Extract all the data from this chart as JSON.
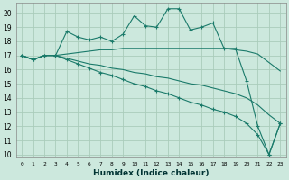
{
  "xlabel": "Humidex (Indice chaleur)",
  "ylabel": "",
  "bg_color": "#cce8dd",
  "grid_color": "#aaccbb",
  "line_color": "#1a7a6a",
  "xlim": [
    -0.5,
    23.5
  ],
  "ylim": [
    9.8,
    20.7
  ],
  "yticks": [
    10,
    11,
    12,
    13,
    14,
    15,
    16,
    17,
    18,
    19,
    20
  ],
  "xticks": [
    0,
    1,
    2,
    3,
    4,
    5,
    6,
    7,
    8,
    9,
    10,
    11,
    12,
    13,
    14,
    15,
    16,
    17,
    18,
    19,
    20,
    21,
    22,
    23
  ],
  "series": [
    {
      "x": [
        0,
        1,
        2,
        3,
        4,
        5,
        6,
        7,
        8,
        9,
        10,
        11,
        12,
        13,
        14,
        15,
        16,
        17,
        18,
        19,
        20,
        21,
        22,
        23
      ],
      "y": [
        17.0,
        16.7,
        17.0,
        17.0,
        18.7,
        18.3,
        18.1,
        18.3,
        18.0,
        18.5,
        19.8,
        19.1,
        19.0,
        20.3,
        20.3,
        18.8,
        19.0,
        19.3,
        17.5,
        17.5,
        15.2,
        12.0,
        10.0,
        12.2
      ],
      "marker": "+"
    },
    {
      "x": [
        0,
        1,
        2,
        3,
        4,
        5,
        6,
        7,
        8,
        9,
        10,
        11,
        12,
        13,
        14,
        15,
        16,
        17,
        18,
        19,
        20,
        21,
        22,
        23
      ],
      "y": [
        17.0,
        16.7,
        17.0,
        17.0,
        17.1,
        17.2,
        17.3,
        17.4,
        17.4,
        17.5,
        17.5,
        17.5,
        17.5,
        17.5,
        17.5,
        17.5,
        17.5,
        17.5,
        17.5,
        17.4,
        17.3,
        17.1,
        16.5,
        15.9
      ],
      "marker": null
    },
    {
      "x": [
        0,
        1,
        2,
        3,
        4,
        5,
        6,
        7,
        8,
        9,
        10,
        11,
        12,
        13,
        14,
        15,
        16,
        17,
        18,
        19,
        20,
        21,
        22,
        23
      ],
      "y": [
        17.0,
        16.7,
        17.0,
        17.0,
        16.8,
        16.6,
        16.4,
        16.3,
        16.1,
        16.0,
        15.8,
        15.7,
        15.5,
        15.4,
        15.2,
        15.0,
        14.9,
        14.7,
        14.5,
        14.3,
        14.0,
        13.5,
        12.8,
        12.2
      ],
      "marker": null
    },
    {
      "x": [
        0,
        1,
        2,
        3,
        4,
        5,
        6,
        7,
        8,
        9,
        10,
        11,
        12,
        13,
        14,
        15,
        16,
        17,
        18,
        19,
        20,
        21,
        22,
        23
      ],
      "y": [
        17.0,
        16.7,
        17.0,
        17.0,
        16.7,
        16.4,
        16.1,
        15.8,
        15.6,
        15.3,
        15.0,
        14.8,
        14.5,
        14.3,
        14.0,
        13.7,
        13.5,
        13.2,
        13.0,
        12.7,
        12.2,
        11.4,
        10.0,
        12.2
      ],
      "marker": "+"
    }
  ]
}
